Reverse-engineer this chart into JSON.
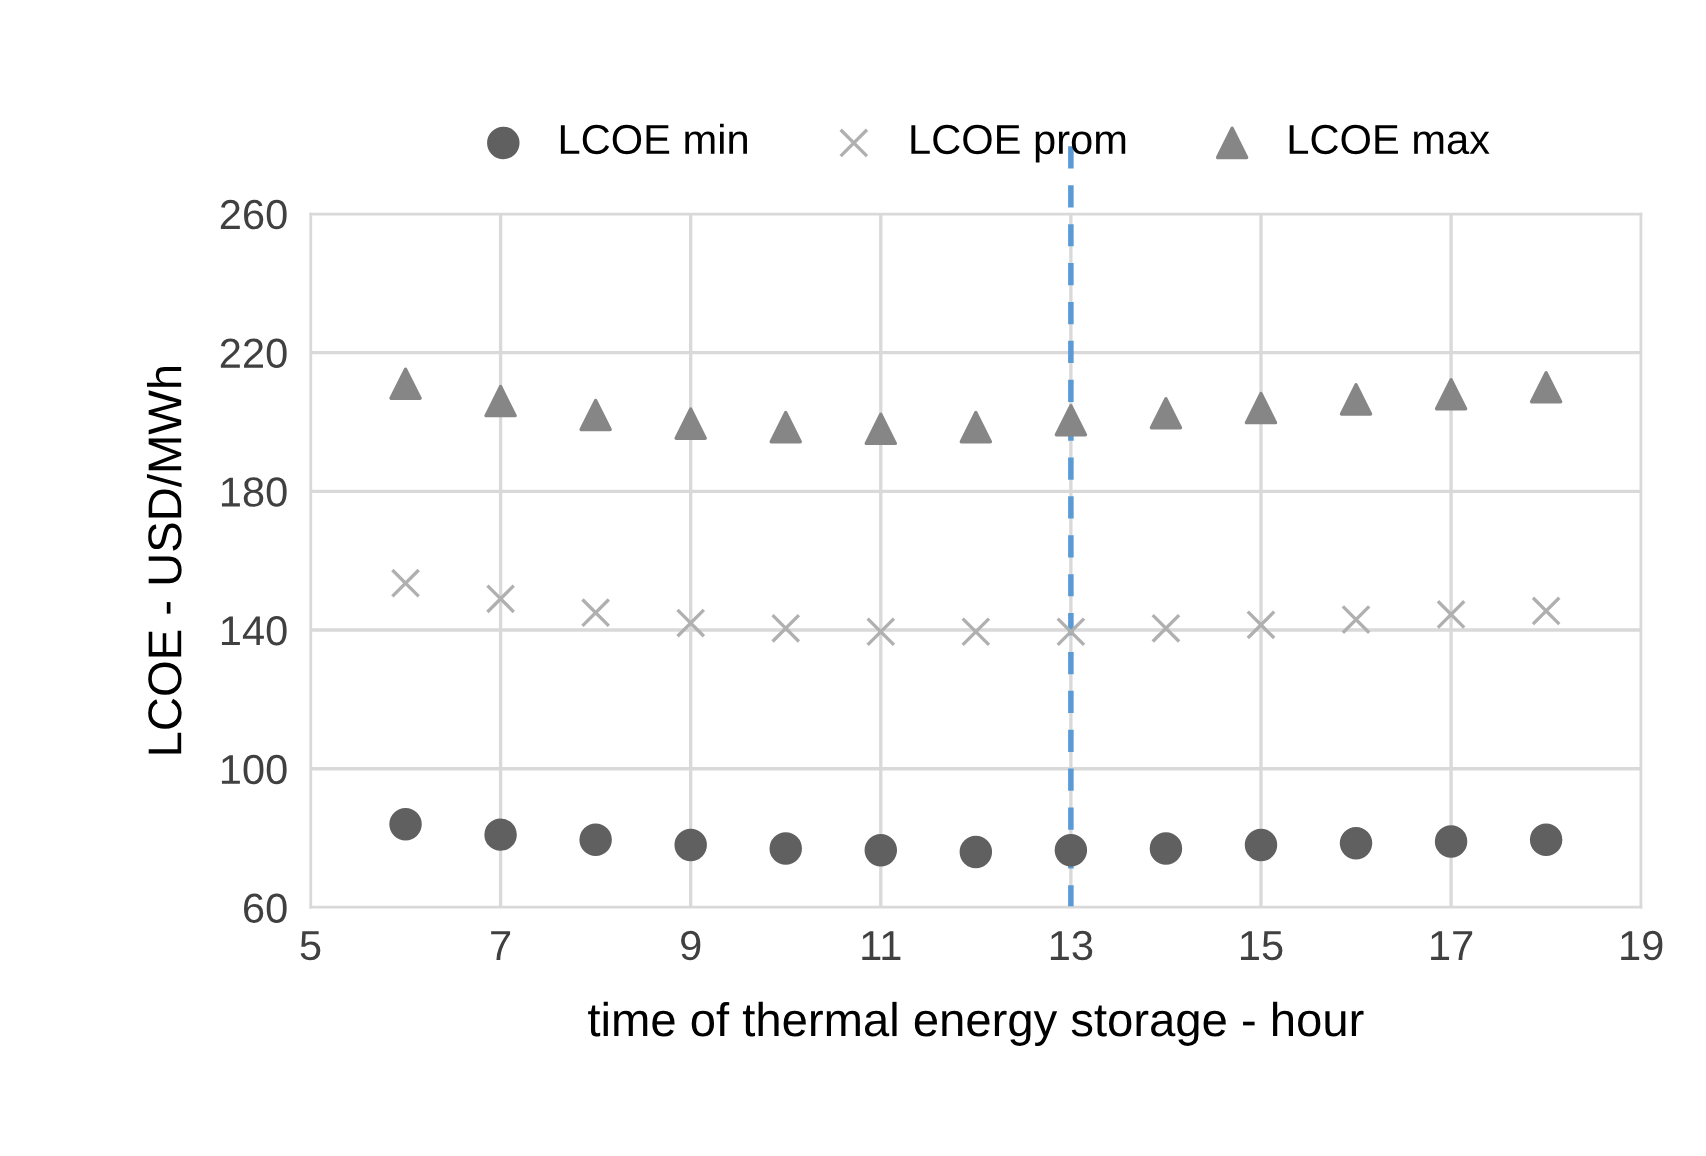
{
  "chart_data": {
    "type": "scatter",
    "xlabel": "time of thermal energy storage - hour",
    "ylabel": "LCOE - USD/MWh",
    "x": [
      6,
      7,
      8,
      9,
      10,
      11,
      12,
      13,
      14,
      15,
      16,
      17,
      18
    ],
    "series": [
      {
        "name": "LCOE min",
        "color": "#606060",
        "marker": "circle",
        "values": [
          84,
          81,
          79.5,
          78,
          77,
          76.5,
          76,
          76.5,
          77,
          78,
          78.5,
          79,
          79.5
        ]
      },
      {
        "name": "LCOE prom",
        "color": "#b0b0b0",
        "marker": "cross",
        "values": [
          153.5,
          149,
          145,
          142,
          140.5,
          139.5,
          139.5,
          139.5,
          140.5,
          141.5,
          143,
          144.5,
          145.5
        ]
      },
      {
        "name": "LCOE max",
        "color": "#868686",
        "marker": "triangle",
        "values": [
          211,
          206,
          202,
          199.5,
          198.5,
          198,
          198.5,
          200.5,
          202.5,
          204,
          206.5,
          208,
          210
        ]
      }
    ],
    "xlim": [
      5,
      19
    ],
    "xticks": [
      5,
      7,
      9,
      11,
      13,
      15,
      17,
      19
    ],
    "ylim": [
      60,
      260
    ],
    "yticks": [
      60,
      100,
      140,
      180,
      220,
      260
    ],
    "ref_lines": [
      {
        "axis": "x",
        "value": 13,
        "label": null,
        "color": "#5b9bd5",
        "line_style": "dashed"
      }
    ],
    "grid": true,
    "legend": "top"
  }
}
